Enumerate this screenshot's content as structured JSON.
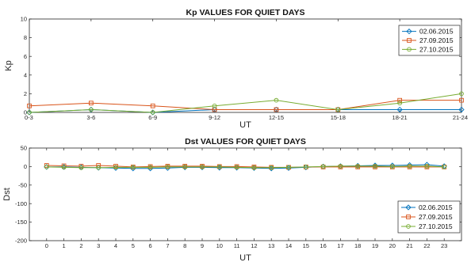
{
  "chart_data": [
    {
      "type": "line",
      "title": "Kp VALUES FOR QUIET DAYS",
      "xlabel": "UT",
      "ylabel": "Kp",
      "categories": [
        "0-3",
        "3-6",
        "6-9",
        "9-12",
        "12-15",
        "15-18",
        "18-21",
        "21-24"
      ],
      "ylim": [
        0,
        10
      ],
      "yticks": [
        0,
        2,
        4,
        6,
        8,
        10
      ],
      "grid": false,
      "legend": "top-right",
      "series": [
        {
          "name": "02.06.2015",
          "color": "#0072BD",
          "marker": "diamond",
          "values": [
            0.0,
            0.3,
            0.0,
            0.3,
            0.3,
            0.3,
            0.3,
            0.3
          ]
        },
        {
          "name": "27.09.2015",
          "color": "#D95319",
          "marker": "square",
          "values": [
            0.7,
            1.0,
            0.7,
            0.3,
            0.3,
            0.3,
            1.3,
            1.3
          ]
        },
        {
          "name": "27.10.2015",
          "color": "#77AC30",
          "marker": "circle",
          "values": [
            0.0,
            0.3,
            0.0,
            0.7,
            1.3,
            0.3,
            1.0,
            2.0
          ]
        }
      ]
    },
    {
      "type": "line",
      "title": "Dst VALUES FOR QUIET DAYS",
      "xlabel": "UT",
      "ylabel": "Dst",
      "categories": [
        "0",
        "1",
        "2",
        "3",
        "4",
        "5",
        "6",
        "7",
        "8",
        "9",
        "10",
        "11",
        "12",
        "13",
        "14",
        "15",
        "16",
        "17",
        "18",
        "19",
        "20",
        "21",
        "22",
        "23"
      ],
      "ylim": [
        -200,
        50
      ],
      "yticks": [
        50,
        0,
        -50,
        -100,
        -150,
        -200
      ],
      "grid": false,
      "legend": "bottom-right",
      "series": [
        {
          "name": "02.06.2015",
          "color": "#0072BD",
          "marker": "diamond",
          "values": [
            -1,
            -1,
            -2,
            -3,
            -4,
            -5,
            -5,
            -4,
            -2,
            -2,
            -3,
            -3,
            -4,
            -5,
            -4,
            -2,
            0,
            1,
            2,
            3,
            3,
            4,
            5,
            1
          ]
        },
        {
          "name": "27.09.2015",
          "color": "#D95319",
          "marker": "square",
          "values": [
            3,
            2,
            1,
            3,
            1,
            -1,
            0,
            1,
            1,
            1,
            0,
            0,
            -1,
            -2,
            -2,
            -1,
            -1,
            -1,
            -1,
            -1,
            -1,
            -1,
            -1,
            -1
          ]
        },
        {
          "name": "27.10.2015",
          "color": "#77AC30",
          "marker": "circle",
          "values": [
            -1,
            -2,
            -3,
            -3,
            -2,
            -2,
            -2,
            -1,
            -1,
            -1,
            -1,
            -2,
            -3,
            -3,
            -2,
            -1,
            0,
            1,
            1,
            1,
            0,
            1,
            1,
            -1
          ]
        }
      ]
    }
  ]
}
